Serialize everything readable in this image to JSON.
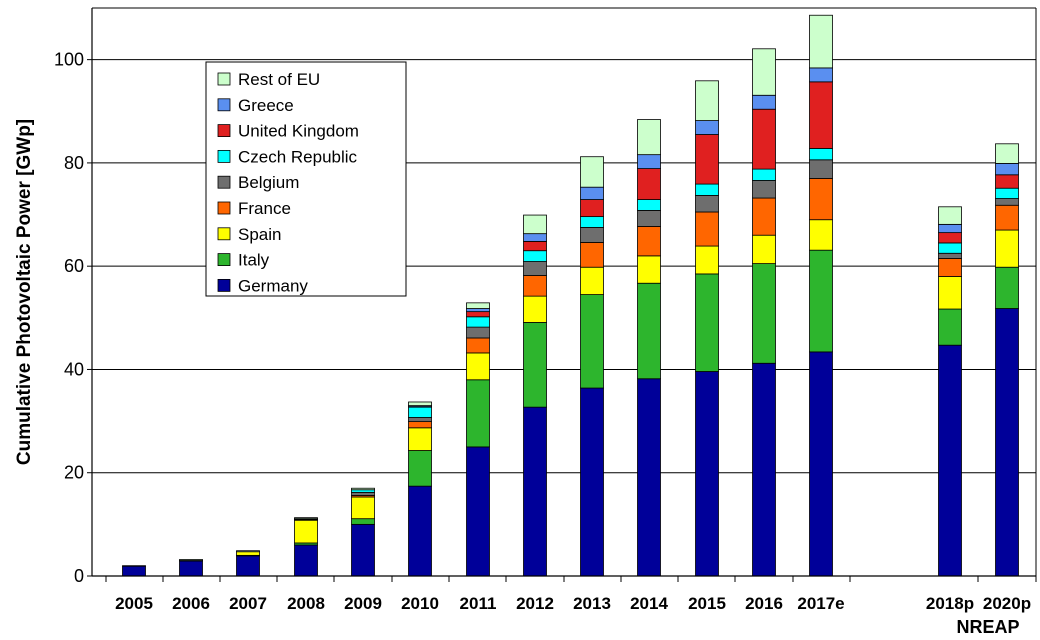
{
  "chart_data": {
    "type": "bar",
    "stacked": true,
    "title": "",
    "xlabel": "",
    "ylabel": "Cumulative Photovoltaic Power [GWp]",
    "ylim": [
      0,
      110
    ],
    "yticks": [
      0,
      20,
      40,
      60,
      80,
      100
    ],
    "grid": true,
    "legend_placement": "top-left",
    "categories": [
      "2005",
      "2006",
      "2007",
      "2008",
      "2009",
      "2010",
      "2011",
      "2012",
      "2013",
      "2014",
      "2015",
      "2016",
      "2017e",
      "2018p",
      "2020p"
    ],
    "category_group_label": "NREAP",
    "category_group_members": [
      "2018p",
      "2020p"
    ],
    "series": [
      {
        "name": "Germany",
        "color": "#000099",
        "values": [
          1.9,
          2.9,
          3.9,
          6.0,
          10.0,
          17.4,
          25.0,
          32.7,
          36.4,
          38.2,
          39.6,
          41.2,
          43.4,
          44.7,
          51.8
        ]
      },
      {
        "name": "Italy",
        "color": "#2db52d",
        "values": [
          0.0,
          0.0,
          0.1,
          0.4,
          1.1,
          6.9,
          13.0,
          16.4,
          18.1,
          18.5,
          18.9,
          19.3,
          19.7,
          7.0,
          8.0
        ]
      },
      {
        "name": "Spain",
        "color": "#ffff00",
        "values": [
          0.0,
          0.1,
          0.7,
          4.4,
          4.2,
          4.4,
          5.2,
          5.1,
          5.3,
          5.3,
          5.4,
          5.5,
          5.9,
          6.3,
          7.2
        ]
      },
      {
        "name": "France",
        "color": "#ff6600",
        "values": [
          0.0,
          0.0,
          0.0,
          0.1,
          0.3,
          1.2,
          2.9,
          4.0,
          4.8,
          5.7,
          6.6,
          7.2,
          8.0,
          3.5,
          4.8
        ]
      },
      {
        "name": "Belgium",
        "color": "#6e6e6e",
        "values": [
          0.0,
          0.0,
          0.0,
          0.1,
          0.6,
          0.8,
          2.1,
          2.7,
          2.9,
          3.1,
          3.2,
          3.4,
          3.6,
          1.0,
          1.3
        ]
      },
      {
        "name": "Czech Republic",
        "color": "#00ffff",
        "values": [
          0.0,
          0.0,
          0.0,
          0.1,
          0.5,
          2.0,
          2.0,
          2.1,
          2.1,
          2.1,
          2.2,
          2.2,
          2.2,
          2.0,
          2.0
        ]
      },
      {
        "name": "United Kingdom",
        "color": "#e02020",
        "values": [
          0.0,
          0.0,
          0.0,
          0.0,
          0.0,
          0.1,
          1.0,
          1.8,
          3.3,
          6.0,
          9.6,
          11.6,
          12.9,
          2.0,
          2.6
        ]
      },
      {
        "name": "Greece",
        "color": "#5a8ff0",
        "values": [
          0.0,
          0.0,
          0.0,
          0.0,
          0.0,
          0.2,
          0.6,
          1.5,
          2.4,
          2.7,
          2.7,
          2.7,
          2.7,
          1.6,
          2.2
        ]
      },
      {
        "name": "Rest of EU",
        "color": "#ccffcc",
        "values": [
          0.1,
          0.2,
          0.2,
          0.2,
          0.3,
          0.7,
          1.1,
          3.6,
          5.9,
          6.8,
          7.7,
          9.0,
          10.2,
          3.4,
          3.8
        ]
      }
    ]
  }
}
